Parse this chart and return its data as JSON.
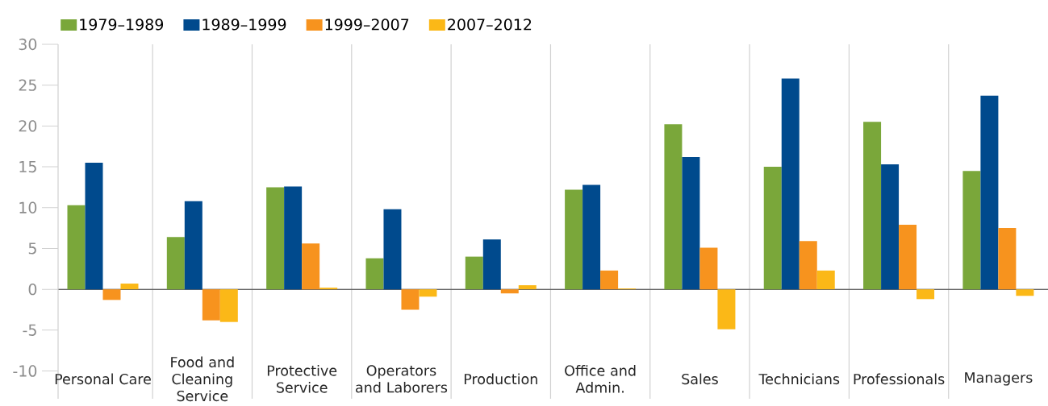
{
  "chart_data": {
    "type": "bar",
    "categories": [
      "Personal Care",
      "Food and Cleaning Service",
      "Protective Service",
      "Operators and Laborers",
      "Production",
      "Office and Admin.",
      "Sales",
      "Technicians",
      "Professionals",
      "Managers"
    ],
    "series": [
      {
        "name": "1979–1989",
        "color": "#7aa73a",
        "values": [
          10.3,
          6.4,
          12.5,
          3.8,
          4.0,
          12.2,
          20.2,
          15.0,
          20.5,
          14.5
        ]
      },
      {
        "name": "1989–1999",
        "color": "#004a8d",
        "values": [
          15.5,
          10.8,
          12.6,
          9.8,
          6.1,
          12.8,
          16.2,
          25.8,
          15.3,
          23.7
        ]
      },
      {
        "name": "1999–2007",
        "color": "#f7931e",
        "values": [
          -1.3,
          -3.8,
          5.6,
          -2.5,
          -0.5,
          2.3,
          5.1,
          5.9,
          7.9,
          7.5
        ]
      },
      {
        "name": "2007–2012",
        "color": "#fbb817",
        "values": [
          0.7,
          -4.0,
          0.2,
          -0.9,
          0.5,
          0.1,
          -4.9,
          2.3,
          -1.2,
          -0.8
        ]
      }
    ],
    "ylim": [
      -13.4,
      30
    ],
    "yticks": [
      -10,
      -5,
      0,
      5,
      10,
      15,
      20,
      25,
      30
    ],
    "grid": "x",
    "legend": "top left"
  }
}
